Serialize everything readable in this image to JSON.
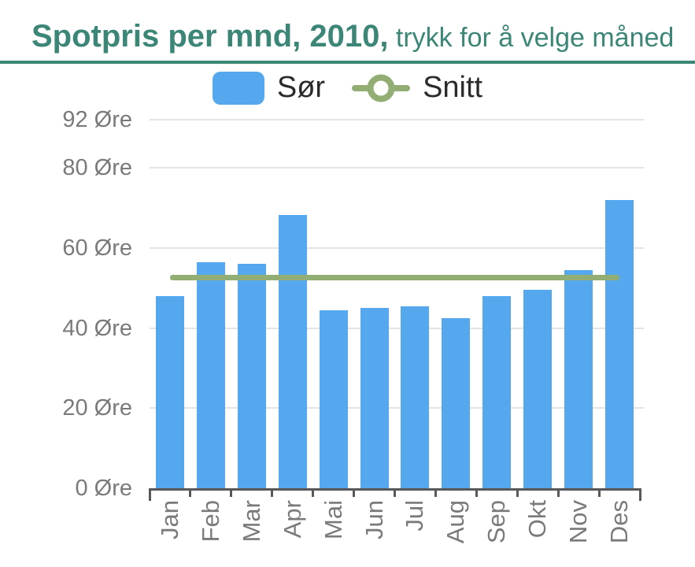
{
  "header": {
    "title_bold": "Spotpris per mnd, 2010,",
    "title_hint": " trykk for å velge måned"
  },
  "legend": {
    "sor_label": "Sør",
    "snitt_label": "Snitt"
  },
  "chart_data": {
    "type": "bar",
    "title": "Spotpris per mnd, 2010",
    "subtitle": "trykk for å velge måned",
    "categories": [
      "Jan",
      "Feb",
      "Mar",
      "Apr",
      "Mai",
      "Jun",
      "Jul",
      "Aug",
      "Sep",
      "Okt",
      "Nov",
      "Des"
    ],
    "series": [
      {
        "name": "Sør",
        "type": "bar",
        "values": [
          48,
          56.5,
          56,
          68.3,
          44.5,
          45,
          45.5,
          42.5,
          48,
          49.5,
          54.5,
          72
        ]
      },
      {
        "name": "Snitt",
        "type": "line",
        "value": 52.5,
        "values": [
          52.5,
          52.5,
          52.5,
          52.5,
          52.5,
          52.5,
          52.5,
          52.5,
          52.5,
          52.5,
          52.5,
          52.5
        ]
      }
    ],
    "ylabel_suffix": " Øre",
    "yticks": [
      0,
      20,
      40,
      60,
      80,
      92
    ],
    "ylim": [
      0,
      92
    ],
    "grid": true,
    "legend_position": "top",
    "unit": "Øre"
  },
  "colors": {
    "title": "#3C8677",
    "bar": "#55A8EE",
    "snitt": "#93AE75",
    "axis": "#58585A",
    "grid": "#E3E3E8",
    "tick_label": "#7A7A7A",
    "legend_text": "#2B2B2B"
  }
}
